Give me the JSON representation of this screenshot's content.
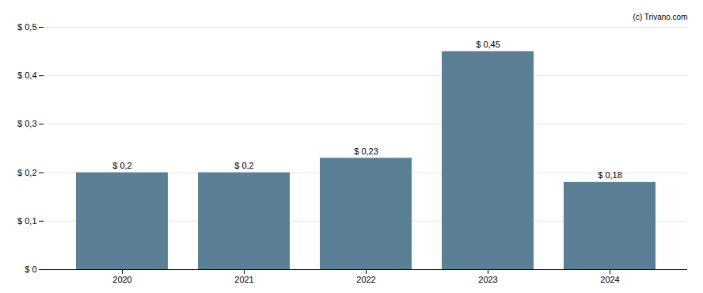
{
  "chart_data": {
    "type": "bar",
    "categories": [
      "2020",
      "2021",
      "2022",
      "2023",
      "2024"
    ],
    "values": [
      0.2,
      0.2,
      0.23,
      0.45,
      0.18
    ],
    "value_labels": [
      "$ 0,2",
      "$ 0,2",
      "$ 0,23",
      "$ 0,45",
      "$ 0,18"
    ],
    "data_labels": true,
    "color": "#5b7f95",
    "ylim": [
      0,
      0.5
    ],
    "yticks": [
      {
        "value": 0,
        "label": "$ 0"
      },
      {
        "value": 0.1,
        "label": "$ 0,1"
      },
      {
        "value": 0.2,
        "label": "$ 0,2"
      },
      {
        "value": 0.3,
        "label": "$ 0,3"
      },
      {
        "value": 0.4,
        "label": "$ 0,4"
      },
      {
        "value": 0.5,
        "label": "$ 0,5"
      }
    ],
    "grid": true,
    "annotations": [
      "(c) Trivano.com"
    ]
  }
}
